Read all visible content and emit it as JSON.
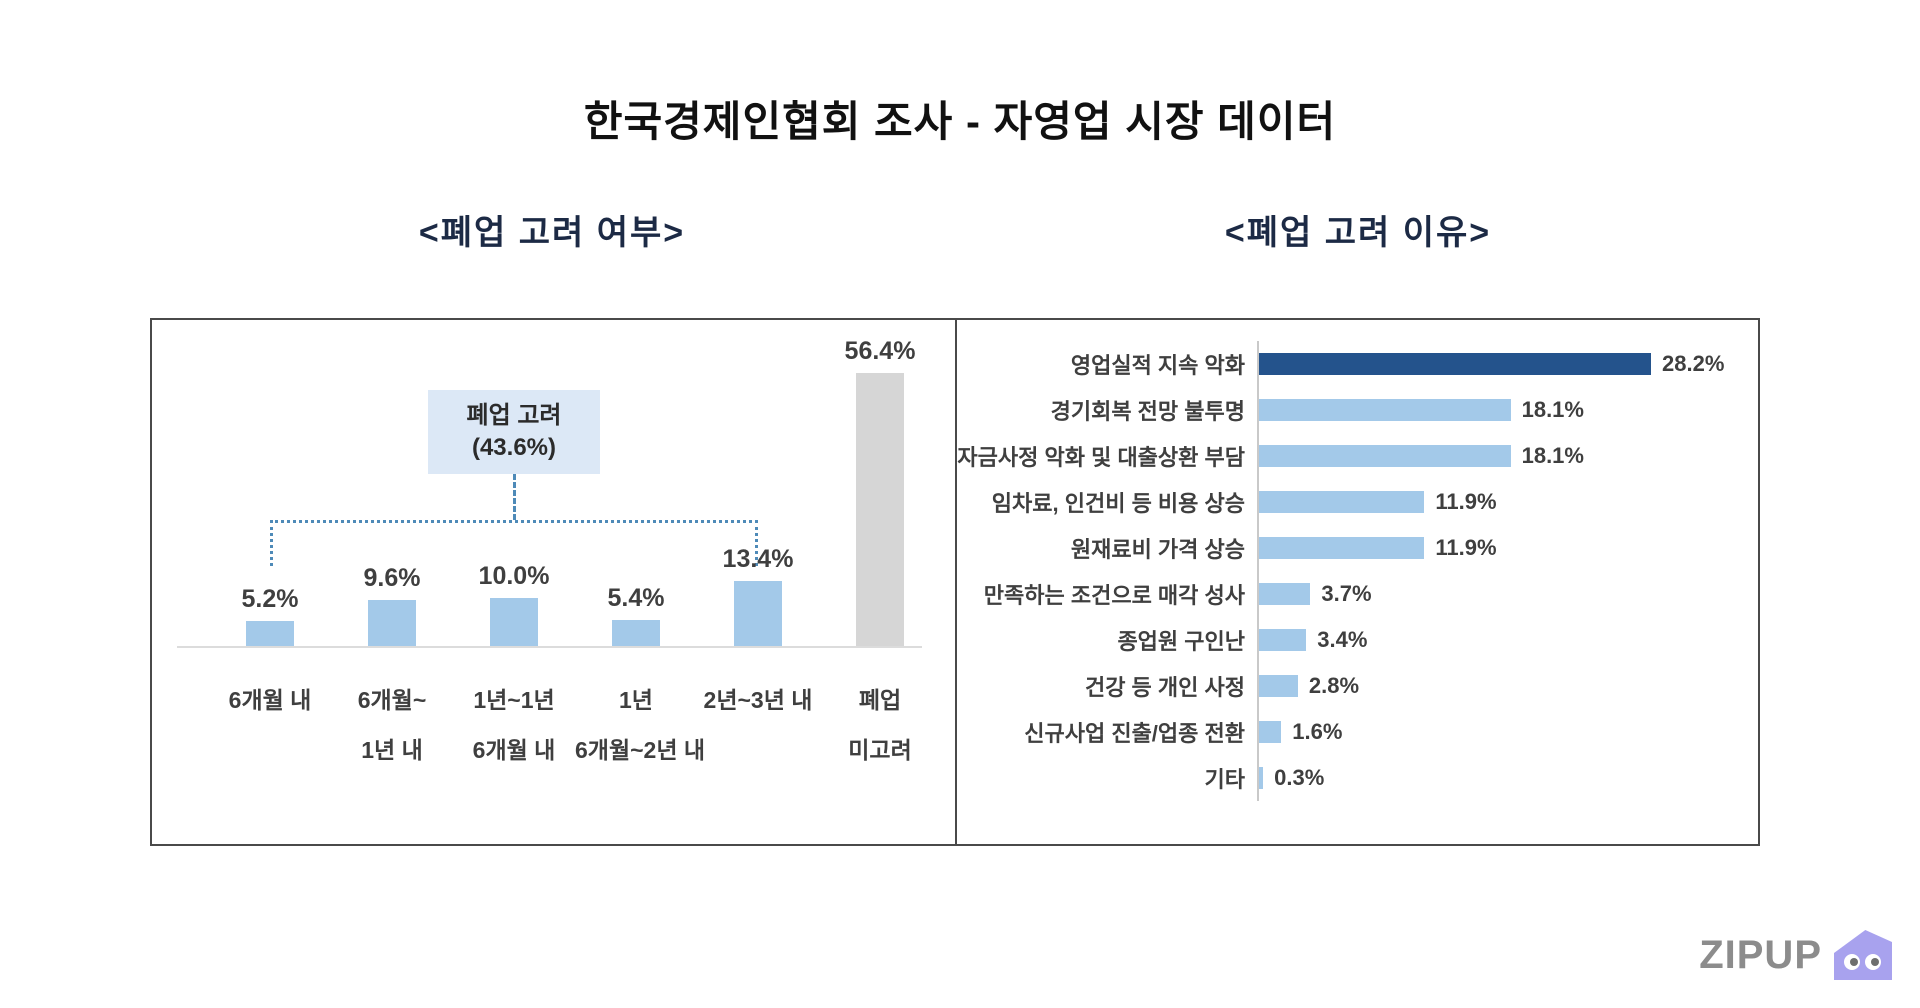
{
  "page": {
    "title": "한국경제인협회 조사 - 자영업 시장 데이터",
    "background": "#FFFFFF"
  },
  "chart_data": [
    {
      "type": "bar",
      "orientation": "vertical",
      "title": "<폐업 고려 여부>",
      "categories": [
        [
          "6개월 내"
        ],
        [
          "6개월~",
          "1년 내"
        ],
        [
          "1년~1년",
          "6개월 내"
        ],
        [
          "1년",
          "6개월~2년 내"
        ],
        [
          "2년~3년 내"
        ],
        [
          "폐업",
          "미고려"
        ]
      ],
      "values": [
        5.2,
        9.6,
        10.0,
        5.4,
        13.4,
        56.4
      ],
      "value_labels": [
        "5.2%",
        "9.6%",
        "10.0%",
        "5.4%",
        "13.4%",
        "56.4%"
      ],
      "bar_colors": [
        "#A3C9E9",
        "#A3C9E9",
        "#A3C9E9",
        "#A3C9E9",
        "#A3C9E9",
        "#D6D6D6"
      ],
      "annotation": {
        "label": "폐업 고려",
        "value": 43.6,
        "value_label": "(43.6%)",
        "covers_categories": [
          0,
          4
        ],
        "style": "dotted-bracket"
      },
      "ylim": [
        0,
        60
      ],
      "grid": false,
      "legend": "none"
    },
    {
      "type": "bar",
      "orientation": "horizontal",
      "title": "<폐업 고려 이유>",
      "categories": [
        "영업실적 지속 악화",
        "경기회복 전망 불투명",
        "자금사정 악화 및 대출상환 부담",
        "임차료, 인건비 등 비용 상승",
        "원재료비 가격 상승",
        "만족하는 조건으로 매각 성사",
        "종업원 구인난",
        "건강 등 개인 사정",
        "신규사업 진출/업종 전환",
        "기타"
      ],
      "values": [
        28.2,
        18.1,
        18.1,
        11.9,
        11.9,
        3.7,
        3.4,
        2.8,
        1.6,
        0.3
      ],
      "value_labels": [
        "28.2%",
        "18.1%",
        "18.1%",
        "11.9%",
        "11.9%",
        "3.7%",
        "3.4%",
        "2.8%",
        "1.6%",
        "0.3%"
      ],
      "bar_colors": [
        "#24538C",
        "#A3C9E9",
        "#A3C9E9",
        "#A3C9E9",
        "#A3C9E9",
        "#A3C9E9",
        "#A3C9E9",
        "#A3C9E9",
        "#A3C9E9",
        "#A3C9E9"
      ],
      "xlim": [
        0,
        30
      ],
      "grid": false,
      "legend": "none"
    }
  ],
  "logo": {
    "text": "ZIPUP",
    "icon": "house-icon",
    "text_color": "#8C8C8C",
    "icon_color": "#A8A2EE"
  },
  "colors": {
    "panel_border": "#4A4A4A",
    "baseline": "#DCDCDC",
    "axis_line": "#C9C9C9",
    "connector_blue": "#4E8AB8",
    "callout_bg": "#DCE8F6",
    "title_text": "#1C2A45",
    "label_text": "#3F3F3F"
  }
}
